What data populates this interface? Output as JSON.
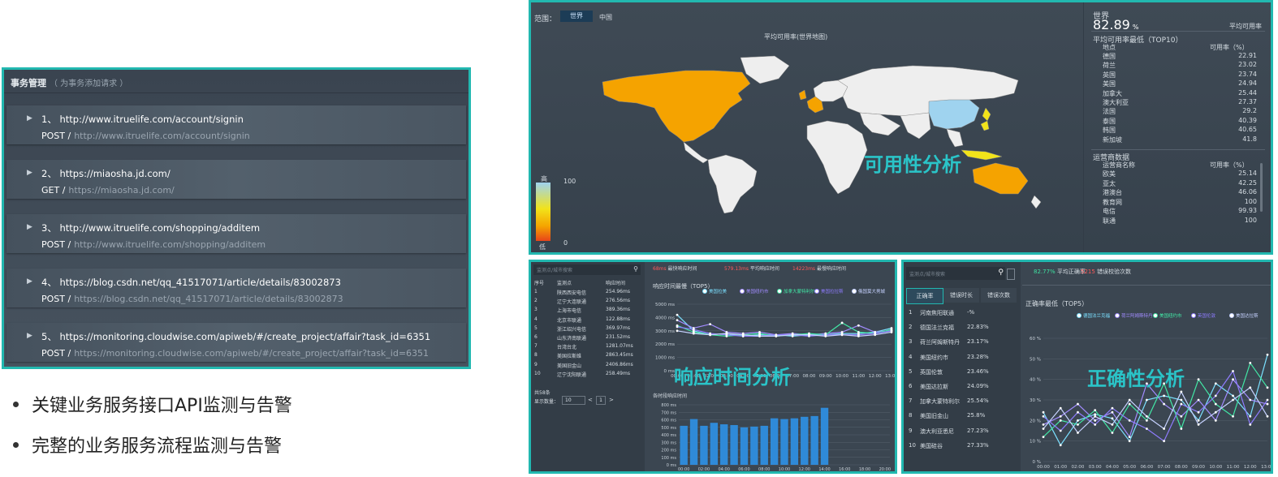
{
  "transactions": {
    "title": "事务管理",
    "subtitle": "（ 为事务添加请求 ）",
    "items": [
      {
        "index": "1、",
        "url": "http://www.itruelife.com/account/signin",
        "method": "POST /",
        "path": "http://www.itruelife.com/account/signin"
      },
      {
        "index": "2、",
        "url": "https://miaosha.jd.com/",
        "method": "GET /",
        "path": "https://miaosha.jd.com/"
      },
      {
        "index": "3、",
        "url": "http://www.itruelife.com/shopping/additem",
        "method": "POST /",
        "path": "http://www.itruelife.com/shopping/additem"
      },
      {
        "index": "4、",
        "url": "https://blog.csdn.net/qq_41517071/article/details/83002873",
        "method": "POST /",
        "path": "https://blog.csdn.net/qq_41517071/article/details/83002873"
      },
      {
        "index": "5、",
        "url": "https://monitoring.cloudwise.com/apiweb/#/create_project/affair?task_id=6351",
        "method": "POST /",
        "path": "https://monitoring.cloudwise.com/apiweb/#/create_project/affair?task_id=6351"
      }
    ]
  },
  "bullets": [
    "关键业务服务接口API监测与告警",
    "完整的业务服务流程监测与告警"
  ],
  "map": {
    "scope_label": "范围：",
    "tab_world": "世界",
    "tab_china": "中国",
    "map_title": "平均可用率(世界地图)",
    "overlay": "可用性分析",
    "legend_high": "高",
    "legend_low": "低",
    "legend_max": "100",
    "legend_min": "0",
    "region": "世界",
    "avg_value": "82.89",
    "avg_unit": "%",
    "avg_label": "平均可用率",
    "top10_title": "平均可用率最低（TOP10）",
    "top10_col_place": "地点",
    "top10_col_rate": "可用率（%）",
    "top10": [
      {
        "name": "德国",
        "value": "22.91"
      },
      {
        "name": "荷兰",
        "value": "23.02"
      },
      {
        "name": "英国",
        "value": "23.74"
      },
      {
        "name": "美国",
        "value": "24.94"
      },
      {
        "name": "加拿大",
        "value": "25.44"
      },
      {
        "name": "澳大利亚",
        "value": "27.37"
      },
      {
        "name": "法国",
        "value": "29.2"
      },
      {
        "name": "泰国",
        "value": "40.39"
      },
      {
        "name": "韩国",
        "value": "40.65"
      },
      {
        "name": "新加坡",
        "value": "41.8"
      }
    ],
    "isp_title": "运营商数据",
    "isp_col_name": "运营商名称",
    "isp_col_rate": "可用率（%）",
    "isp": [
      {
        "name": "欧美",
        "value": "25.14"
      },
      {
        "name": "亚太",
        "value": "42.25"
      },
      {
        "name": "港澳台",
        "value": "46.06"
      },
      {
        "name": "教育网",
        "value": "100"
      },
      {
        "name": "电信",
        "value": "99.93"
      },
      {
        "name": "联通",
        "value": "100"
      }
    ],
    "colors": {
      "orange": "#f5a300",
      "blue": "#9fd3ef",
      "yellow": "#f2e31a",
      "land": "#eeeeee"
    }
  },
  "response": {
    "search_placeholder": "监测点/城市搜索",
    "stat1_value": "68ms",
    "stat1_label": "最快响应时间",
    "stat2_value": "579.13ms",
    "stat2_label": "平均响应时间",
    "stat3_value": "14223ms",
    "stat3_label": "最慢响应时间",
    "table_cols": [
      "序号",
      "监测点",
      "响应时间"
    ],
    "rows": [
      [
        "1",
        "陕西西安电信",
        "254.96ms"
      ],
      [
        "2",
        "辽宁大连联通",
        "276.56ms"
      ],
      [
        "3",
        "上海市电信",
        "389.36ms"
      ],
      [
        "4",
        "北京市联通",
        "122.88ms"
      ],
      [
        "5",
        "浙江绍兴电信",
        "369.97ms"
      ],
      [
        "6",
        "山东济南联通",
        "231.52ms"
      ],
      [
        "7",
        "台湾台北",
        "1281.07ms"
      ],
      [
        "8",
        "美国拉斯维",
        "2863.45ms"
      ],
      [
        "9",
        "美国旧金山",
        "2406.86ms"
      ],
      [
        "10",
        "辽宁沈阳联通",
        "258.49ms"
      ]
    ],
    "total": "共58条",
    "page_size_label": "显示数量：",
    "page_size": "10",
    "page": "1",
    "line_title": "响应时间最慢（TOP5）",
    "line_legend": [
      "美国拉美",
      "美国纽约市",
      "加拿大蒙特利尔",
      "美国拉拉斯",
      "俄国莫大男城"
    ],
    "bar_title": "各时段响应时间",
    "overlay": "响应时间分析"
  },
  "accuracy": {
    "search_placeholder": "监测点/城市搜索",
    "stat1_value": "82.77%",
    "stat1_label": "平均正确率",
    "stat2_value": "5215",
    "stat2_label": "错误校验次数",
    "tabs": [
      "正确率",
      "错误时长",
      "错误次数"
    ],
    "rows": [
      [
        "1",
        "河南焦阳联通",
        "-%"
      ],
      [
        "2",
        "德国法兰克福",
        "22.83%"
      ],
      [
        "3",
        "荷兰阿姆斯特丹",
        "23.17%"
      ],
      [
        "4",
        "美国纽约市",
        "23.28%"
      ],
      [
        "5",
        "英国伦敦",
        "23.46%"
      ],
      [
        "6",
        "美国达拉斯",
        "24.09%"
      ],
      [
        "7",
        "加拿大蒙特利尔",
        "25.54%"
      ],
      [
        "8",
        "美国旧金山",
        "25.8%"
      ],
      [
        "9",
        "澳大利亚悉尼",
        "27.23%"
      ],
      [
        "10",
        "美国硅谷",
        "27.33%"
      ]
    ],
    "chart_title": "正确率最低（TOP5）",
    "legend": [
      "德国法兰克福",
      "荷兰阿姆斯特丹",
      "美国纽约市",
      "英国伦敦",
      "美国达拉斯"
    ],
    "overlay": "正确性分析"
  },
  "chart_data": [
    {
      "type": "line",
      "title": "响应时间最慢（TOP5）",
      "x": [
        "00:00",
        "01:00",
        "02:00",
        "03:00",
        "04:00",
        "05:00",
        "06:00",
        "07:00",
        "08:00",
        "09:00",
        "10:00",
        "11:00",
        "12:00",
        "13:00"
      ],
      "ylim": [
        0,
        5000
      ],
      "yticks": [
        "0 ms",
        "1000 ms",
        "2000 ms",
        "3000 ms",
        "4000 ms",
        "5000 ms"
      ],
      "series": [
        {
          "name": "美国拉美",
          "values": [
            4200,
            3000,
            2700,
            2800,
            2600,
            2700,
            2700,
            2600,
            2700,
            2700,
            2800,
            2800,
            2900,
            3200
          ]
        },
        {
          "name": "美国纽约市",
          "values": [
            3800,
            3200,
            3500,
            2900,
            2800,
            2900,
            2700,
            2800,
            2700,
            2800,
            2900,
            3400,
            2900,
            3000
          ]
        },
        {
          "name": "加拿大蒙特利尔",
          "values": [
            3400,
            2900,
            2700,
            2600,
            2700,
            2800,
            2600,
            2700,
            2800,
            2700,
            3600,
            2900,
            2800,
            3100
          ]
        },
        {
          "name": "美国拉拉斯",
          "values": [
            3300,
            3100,
            2800,
            2700,
            2600,
            2600,
            2700,
            2700,
            2600,
            2700,
            2700,
            2700,
            2800,
            3000
          ]
        },
        {
          "name": "俄国莫大男城",
          "values": [
            3000,
            2800,
            2700,
            2800,
            2700,
            2600,
            2600,
            2700,
            2700,
            2600,
            2700,
            2600,
            2700,
            2900
          ]
        }
      ]
    },
    {
      "type": "bar",
      "title": "各时段响应时间",
      "categories": [
        "00:00",
        "01:00",
        "02:00",
        "03:00",
        "04:00",
        "05:00",
        "06:00",
        "07:00",
        "08:00",
        "09:00",
        "10:00",
        "11:00",
        "12:00",
        "13:00",
        "14:00",
        "15:00",
        "16:00",
        "17:00",
        "18:00",
        "19:00",
        "20:00"
      ],
      "values": [
        520,
        610,
        520,
        560,
        540,
        530,
        500,
        510,
        520,
        620,
        610,
        620,
        640,
        650,
        760,
        0,
        0,
        0,
        0,
        0,
        0
      ],
      "ylim": [
        0,
        800
      ],
      "yticks": [
        "0 ms",
        "100 ms",
        "200 ms",
        "300 ms",
        "400 ms",
        "500 ms",
        "600 ms",
        "700 ms",
        "800 ms"
      ],
      "xticks": [
        "00:00",
        "02:00",
        "04:00",
        "06:00",
        "08:00",
        "10:00",
        "12:00",
        "14:00",
        "16:00",
        "18:00",
        "20:00"
      ]
    },
    {
      "type": "line",
      "title": "正确率最低（TOP5）",
      "x": [
        "00:00",
        "01:00",
        "02:00",
        "03:00",
        "04:00",
        "05:00",
        "06:00",
        "07:00",
        "08:00",
        "09:00",
        "10:00",
        "11:00",
        "12:00",
        "13:00"
      ],
      "ylim": [
        0,
        60
      ],
      "yticks": [
        "0 %",
        "10 %",
        "20 %",
        "30 %",
        "40 %",
        "50 %",
        "60 %"
      ],
      "series": [
        {
          "name": "德国法兰克福",
          "values": [
            24,
            8,
            20,
            23,
            21,
            10,
            30,
            32,
            30,
            20,
            38,
            32,
            22,
            52
          ]
        },
        {
          "name": "荷兰阿姆斯特丹",
          "values": [
            18,
            22,
            28,
            20,
            24,
            12,
            38,
            28,
            22,
            30,
            20,
            40,
            30,
            28
          ]
        },
        {
          "name": "美国纽约市",
          "values": [
            12,
            20,
            18,
            25,
            14,
            28,
            20,
            38,
            16,
            40,
            28,
            22,
            48,
            36
          ]
        },
        {
          "name": "英国伦敦",
          "values": [
            22,
            15,
            24,
            18,
            26,
            20,
            16,
            10,
            28,
            24,
            32,
            44,
            18,
            30
          ]
        },
        {
          "name": "美国达拉斯",
          "values": [
            16,
            26,
            14,
            22,
            18,
            30,
            22,
            16,
            34,
            18,
            24,
            30,
            36,
            22
          ]
        }
      ],
      "colors": [
        "#7be0ff",
        "#a28cff",
        "#42e8a6",
        "#8f7cff",
        "#c6d2ff"
      ]
    }
  ]
}
